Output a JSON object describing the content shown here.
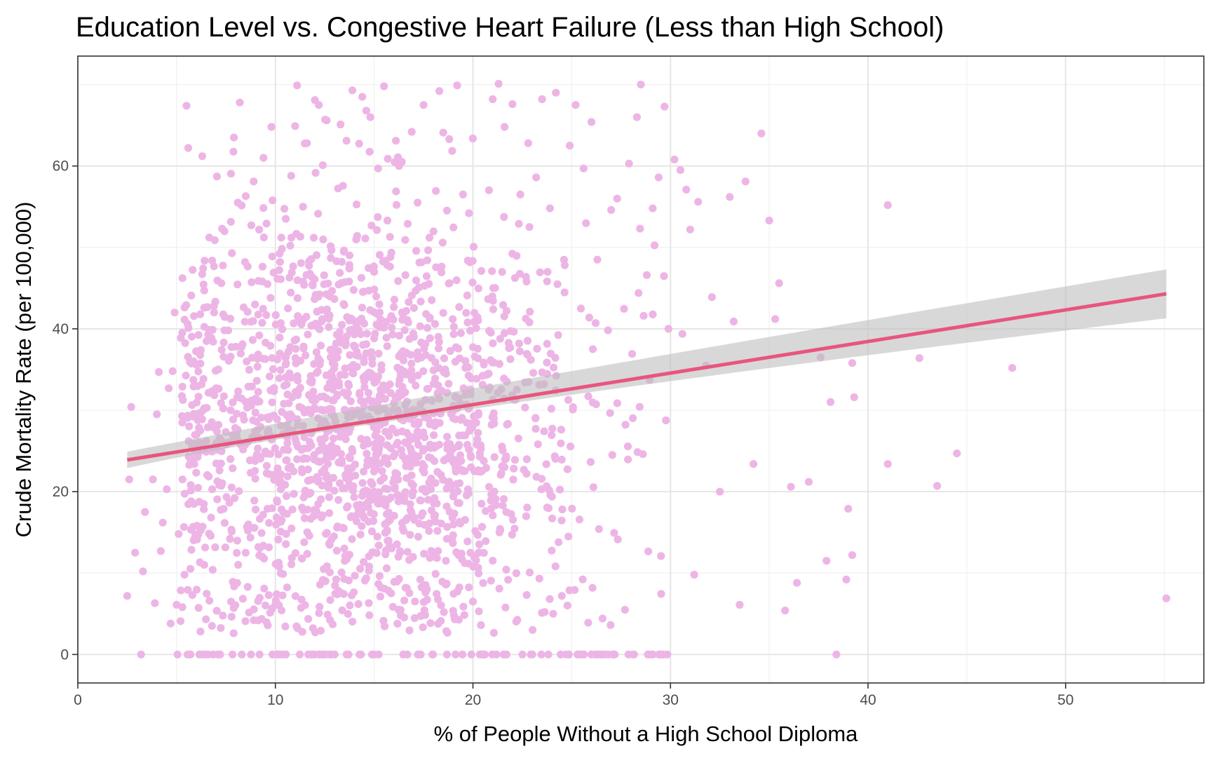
{
  "chart_data": {
    "type": "scatter",
    "title": "Education Level vs. Congestive Heart Failure (Less than High School)",
    "xlabel": "% of People Without a High School Diploma",
    "ylabel": "Crude Mortality Rate (per 100,000)",
    "xlim": [
      0,
      57
    ],
    "ylim": [
      -3.5,
      73.5
    ],
    "x_ticks": [
      0,
      10,
      20,
      30,
      40,
      50
    ],
    "y_ticks": [
      0,
      20,
      40,
      60
    ],
    "grid": true,
    "legend": "none",
    "point_color": "#EDB5E5",
    "trend_color": "#E8557F",
    "band_color": "#BEBEBE",
    "trend": {
      "x_start": 2.5,
      "y_start": 23.9,
      "x_end": 55.1,
      "y_end": 44.3,
      "band_start": [
        22.9,
        24.9
      ],
      "band_mid": [
        29.5,
        30.8
      ],
      "band_end": [
        41.3,
        47.3
      ]
    },
    "points": [
      [
        2.5,
        7.2
      ],
      [
        2.6,
        21.5
      ],
      [
        2.7,
        30.4
      ],
      [
        2.9,
        12.5
      ],
      [
        3.2,
        0
      ],
      [
        3.3,
        10.2
      ],
      [
        3.4,
        17.5
      ],
      [
        3.8,
        21.5
      ],
      [
        3.9,
        6.3
      ],
      [
        4.0,
        29.5
      ],
      [
        4.1,
        34.7
      ],
      [
        4.2,
        12.7
      ],
      [
        4.3,
        16.2
      ],
      [
        4.5,
        20.3
      ],
      [
        4.6,
        32.7
      ],
      [
        4.7,
        3.8
      ],
      [
        4.8,
        34.8
      ],
      [
        4.9,
        42.0
      ],
      [
        5.0,
        6.1
      ],
      [
        5.1,
        14.8
      ],
      [
        5.2,
        4.1
      ],
      [
        5.3,
        21.5
      ],
      [
        5.4,
        9.8
      ],
      [
        5.5,
        67.4
      ],
      [
        5.6,
        40.1
      ],
      [
        5.7,
        0
      ],
      [
        5.8,
        7.3
      ],
      [
        5.9,
        23.4
      ],
      [
        6.0,
        35.6
      ],
      [
        6.1,
        29.6
      ],
      [
        6.2,
        27.5
      ],
      [
        6.3,
        61.2
      ],
      [
        6.4,
        11.0
      ],
      [
        6.5,
        24.9
      ],
      [
        6.6,
        39.3
      ],
      [
        6.8,
        20.3
      ],
      [
        6.9,
        42.0
      ],
      [
        7.0,
        32.7
      ],
      [
        7.1,
        0
      ],
      [
        7.2,
        0
      ],
      [
        7.3,
        52.3
      ],
      [
        7.5,
        25.8
      ],
      [
        7.7,
        14.2
      ],
      [
        7.8,
        49.3
      ],
      [
        7.9,
        63.5
      ],
      [
        8.0,
        37.8
      ],
      [
        8.1,
        55.5
      ],
      [
        8.2,
        67.8
      ],
      [
        8.3,
        0
      ],
      [
        8.5,
        56.3
      ],
      [
        8.6,
        8.3
      ],
      [
        8.8,
        31.2
      ],
      [
        8.9,
        58.1
      ],
      [
        9.0,
        17.8
      ],
      [
        9.2,
        0
      ],
      [
        9.4,
        61.0
      ],
      [
        9.6,
        45.5
      ],
      [
        9.8,
        64.8
      ],
      [
        10.1,
        0
      ],
      [
        10.3,
        51.2
      ],
      [
        10.5,
        36.5
      ],
      [
        10.8,
        58.8
      ],
      [
        11.0,
        64.9
      ],
      [
        11.1,
        69.9
      ],
      [
        11.4,
        55.0
      ],
      [
        11.6,
        62.8
      ],
      [
        11.8,
        0
      ],
      [
        12.0,
        68.1
      ],
      [
        12.2,
        67.5
      ],
      [
        12.4,
        60.1
      ],
      [
        12.6,
        65.6
      ],
      [
        12.9,
        3.7
      ],
      [
        13.1,
        48.3
      ],
      [
        13.3,
        65.1
      ],
      [
        13.6,
        63.1
      ],
      [
        13.9,
        69.3
      ],
      [
        14.2,
        6.2
      ],
      [
        14.4,
        68.5
      ],
      [
        14.6,
        66.8
      ],
      [
        15.0,
        47.0
      ],
      [
        15.2,
        59.7
      ],
      [
        15.5,
        69.8
      ],
      [
        15.8,
        51.3
      ],
      [
        16.1,
        63.1
      ],
      [
        16.4,
        60.5
      ],
      [
        16.7,
        52.9
      ],
      [
        16.9,
        64.2
      ],
      [
        17.2,
        55.5
      ],
      [
        17.5,
        67.5
      ],
      [
        17.8,
        51.2
      ],
      [
        18.1,
        12.0
      ],
      [
        18.3,
        69.2
      ],
      [
        18.5,
        64.1
      ],
      [
        18.8,
        63.3
      ],
      [
        19.2,
        69.9
      ],
      [
        19.5,
        56.5
      ],
      [
        19.8,
        54.2
      ],
      [
        20.0,
        6.5
      ],
      [
        20.3,
        5.3
      ],
      [
        20.6,
        0
      ],
      [
        21.0,
        68.2
      ],
      [
        21.3,
        70.1
      ],
      [
        21.6,
        64.8
      ],
      [
        22.0,
        67.6
      ],
      [
        22.4,
        56.5
      ],
      [
        22.8,
        62.8
      ],
      [
        23.2,
        58.6
      ],
      [
        23.5,
        68.2
      ],
      [
        23.9,
        54.8
      ],
      [
        24.2,
        69.0
      ],
      [
        24.5,
        7.2
      ],
      [
        24.9,
        62.5
      ],
      [
        25.2,
        67.5
      ],
      [
        25.6,
        59.7
      ],
      [
        26.0,
        65.4
      ],
      [
        26.3,
        48.5
      ],
      [
        26.6,
        0
      ],
      [
        27.0,
        54.6
      ],
      [
        27.3,
        56.0
      ],
      [
        27.9,
        60.3
      ],
      [
        28.3,
        66.0
      ],
      [
        28.5,
        70.0
      ],
      [
        28.8,
        46.6
      ],
      [
        29.1,
        54.8
      ],
      [
        29.4,
        58.6
      ],
      [
        29.7,
        67.3
      ],
      [
        29.9,
        40.0
      ],
      [
        30.2,
        60.8
      ],
      [
        30.5,
        59.5
      ],
      [
        30.8,
        57.1
      ],
      [
        31.0,
        52.2
      ],
      [
        31.2,
        9.8
      ],
      [
        31.4,
        55.6
      ],
      [
        31.8,
        35.5
      ],
      [
        32.1,
        43.9
      ],
      [
        32.5,
        20.0
      ],
      [
        33.0,
        56.2
      ],
      [
        33.2,
        40.9
      ],
      [
        33.5,
        6.1
      ],
      [
        33.8,
        58.1
      ],
      [
        34.2,
        23.4
      ],
      [
        34.6,
        64.0
      ],
      [
        35.0,
        53.3
      ],
      [
        35.3,
        41.2
      ],
      [
        35.5,
        45.6
      ],
      [
        35.8,
        5.4
      ],
      [
        36.1,
        20.6
      ],
      [
        36.4,
        8.8
      ],
      [
        37.0,
        21.2
      ],
      [
        37.6,
        36.5
      ],
      [
        37.9,
        11.5
      ],
      [
        38.1,
        31.0
      ],
      [
        38.4,
        0
      ],
      [
        38.9,
        9.2
      ],
      [
        39.0,
        17.9
      ],
      [
        39.2,
        35.8
      ],
      [
        39.2,
        12.2
      ],
      [
        39.3,
        31.6
      ],
      [
        41.0,
        55.2
      ],
      [
        41.0,
        23.4
      ],
      [
        42.6,
        36.4
      ],
      [
        43.5,
        20.7
      ],
      [
        44.5,
        24.7
      ],
      [
        47.3,
        35.2
      ],
      [
        55.1,
        6.9
      ]
    ]
  }
}
